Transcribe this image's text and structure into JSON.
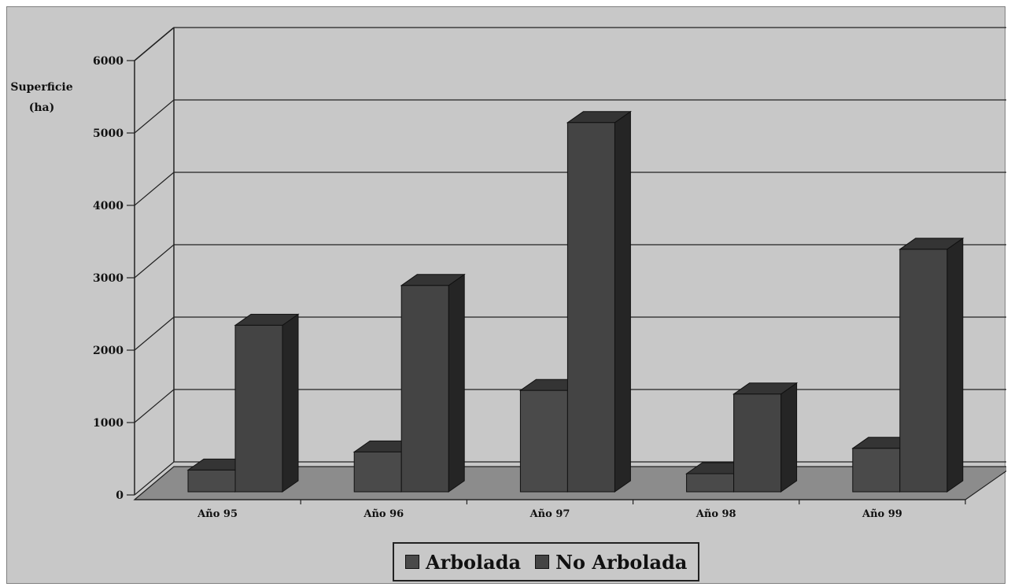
{
  "chart_data": {
    "type": "bar",
    "ylabel_line1": "Superficie",
    "ylabel_line2": "(ha)",
    "categories": [
      "Año 95",
      "Año 96",
      "Año 97",
      "Año 98",
      "Año 99"
    ],
    "series": [
      {
        "name": "Arbolada",
        "values": [
          300,
          550,
          1400,
          250,
          600
        ],
        "color": "#4a4a4a"
      },
      {
        "name": "No Arbolada",
        "values": [
          2300,
          2850,
          5100,
          1350,
          3350
        ],
        "color": "#444444"
      }
    ],
    "ylim": [
      0,
      6000
    ],
    "yticks": [
      0,
      1000,
      2000,
      3000,
      4000,
      5000,
      6000
    ],
    "ytick_labels": [
      "0",
      "1000",
      "2000",
      "3000",
      "4000",
      "5000",
      "6000"
    ],
    "grid": true,
    "legend_position": "bottom",
    "colors": {
      "background": "#c8c8c8",
      "floor": "#8c8c8c",
      "bar_front": "#484848",
      "bar_side": "#252525",
      "bar_top": "#343434",
      "gridline": "#222222"
    }
  }
}
